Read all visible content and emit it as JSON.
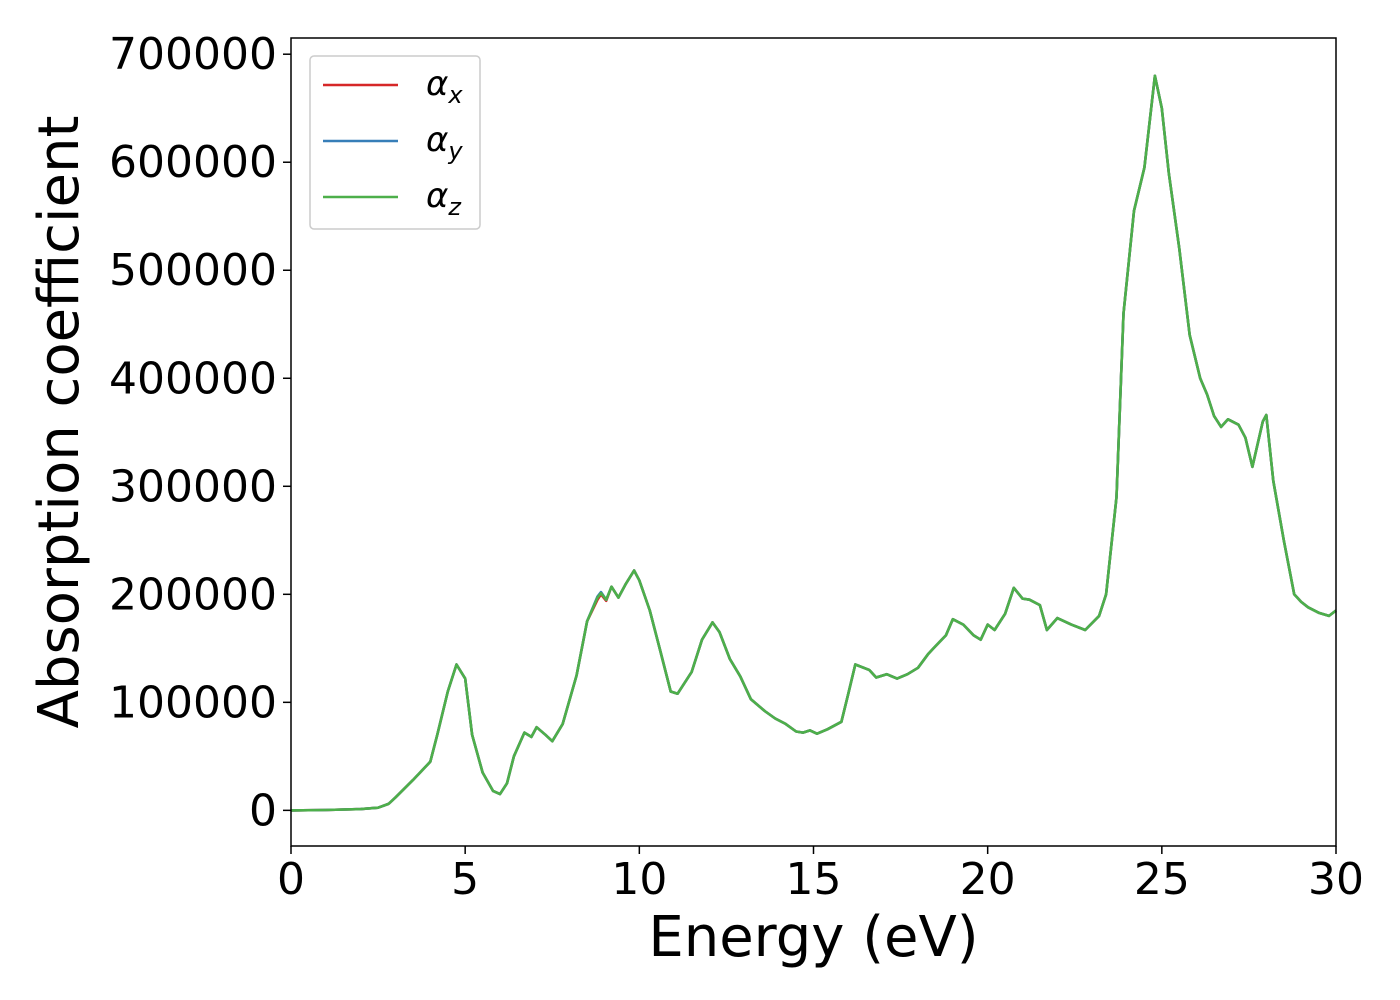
{
  "chart_data": {
    "type": "line",
    "xlabel": "Energy (eV)",
    "ylabel": "Absorption coefficient",
    "xlim": [
      0,
      30
    ],
    "ylim": [
      -33000,
      715000
    ],
    "xticks": [
      "0",
      "5",
      "10",
      "15",
      "20",
      "25",
      "30"
    ],
    "yticks": [
      "0",
      "100000",
      "200000",
      "300000",
      "400000",
      "500000",
      "600000",
      "700000"
    ],
    "grid": false,
    "legend_placement": "upper-left",
    "series": [
      {
        "name": "α",
        "sub": "x",
        "color": "#d62728",
        "x": [
          0,
          1,
          2,
          2.5,
          2.8,
          3.0,
          3.5,
          4.0,
          4.2,
          4.5,
          4.75,
          5.0,
          5.2,
          5.5,
          5.8,
          6.0,
          6.2,
          6.4,
          6.7,
          6.9,
          7.05,
          7.3,
          7.5,
          7.8,
          8.2,
          8.5,
          8.8,
          8.9,
          9.05,
          9.2,
          9.4,
          9.6,
          9.85,
          10.0,
          10.3,
          10.6,
          10.9,
          11.1,
          11.5,
          11.8,
          12.1,
          12.3,
          12.6,
          12.9,
          13.2,
          13.6,
          13.9,
          14.2,
          14.5,
          14.7,
          14.9,
          15.1,
          15.4,
          15.8,
          16.0,
          16.2,
          16.6,
          16.8,
          17.1,
          17.4,
          17.7,
          18.0,
          18.3,
          18.5,
          18.8,
          19.0,
          19.3,
          19.6,
          19.8,
          20.0,
          20.2,
          20.5,
          20.75,
          21.0,
          21.2,
          21.5,
          21.7,
          22.0,
          22.4,
          22.8,
          23.2,
          23.4,
          23.7,
          23.9,
          24.2,
          24.5,
          24.8,
          25.0,
          25.2,
          25.5,
          25.8,
          26.1,
          26.3,
          26.5,
          26.7,
          26.9,
          27.2,
          27.4,
          27.6,
          27.9,
          28.0,
          28.2,
          28.5,
          28.8,
          29.0,
          29.2,
          29.5,
          29.8,
          30.0
        ],
        "y": [
          0,
          300,
          1200,
          2500,
          6000,
          12000,
          28000,
          45000,
          70000,
          110000,
          135000,
          122000,
          70000,
          35000,
          18000,
          15000,
          25000,
          50000,
          72000,
          68000,
          77000,
          70000,
          64000,
          80000,
          125000,
          175000,
          195000,
          200000,
          194000,
          207000,
          197000,
          209000,
          222000,
          213000,
          185000,
          148000,
          110000,
          108000,
          128000,
          158000,
          174000,
          165000,
          140000,
          124000,
          103000,
          92000,
          85000,
          80000,
          73000,
          72000,
          74000,
          71000,
          75000,
          82000,
          108000,
          135000,
          130000,
          123000,
          126000,
          122000,
          126000,
          132000,
          145000,
          152000,
          162000,
          177000,
          172000,
          162000,
          158000,
          172000,
          167000,
          182000,
          206000,
          196000,
          195000,
          190000,
          167000,
          178000,
          172000,
          167000,
          180000,
          200000,
          290000,
          460000,
          555000,
          595000,
          680000,
          650000,
          590000,
          520000,
          440000,
          400000,
          385000,
          365000,
          355000,
          362000,
          357000,
          345000,
          318000,
          360000,
          366000,
          305000,
          250000,
          200000,
          193000,
          188000,
          183000,
          180000,
          185000
        ]
      },
      {
        "name": "α",
        "sub": "y",
        "color": "#377eb8",
        "x": [
          0,
          1,
          2,
          2.5,
          2.8,
          3.0,
          3.5,
          4.0,
          4.2,
          4.5,
          4.75,
          5.0,
          5.2,
          5.5,
          5.8,
          6.0,
          6.2,
          6.4,
          6.7,
          6.9,
          7.05,
          7.3,
          7.5,
          7.8,
          8.2,
          8.5,
          8.8,
          8.9,
          9.05,
          9.2,
          9.4,
          9.6,
          9.85,
          10.0,
          10.3,
          10.6,
          10.9,
          11.1,
          11.5,
          11.8,
          12.1,
          12.3,
          12.6,
          12.9,
          13.2,
          13.6,
          13.9,
          14.2,
          14.5,
          14.7,
          14.9,
          15.1,
          15.4,
          15.8,
          16.0,
          16.2,
          16.6,
          16.8,
          17.1,
          17.4,
          17.7,
          18.0,
          18.3,
          18.5,
          18.8,
          19.0,
          19.3,
          19.6,
          19.8,
          20.0,
          20.2,
          20.5,
          20.75,
          21.0,
          21.2,
          21.5,
          21.7,
          22.0,
          22.4,
          22.8,
          23.2,
          23.4,
          23.7,
          23.9,
          24.2,
          24.5,
          24.8,
          25.0,
          25.2,
          25.5,
          25.8,
          26.1,
          26.3,
          26.5,
          26.7,
          26.9,
          27.2,
          27.4,
          27.6,
          27.9,
          28.0,
          28.2,
          28.5,
          28.8,
          29.0,
          29.2,
          29.5,
          29.8,
          30.0
        ],
        "y": [
          0,
          300,
          1200,
          2500,
          6000,
          12000,
          28000,
          45000,
          70000,
          110000,
          135000,
          122000,
          70000,
          35000,
          18000,
          15000,
          25000,
          50000,
          72000,
          68000,
          77000,
          70000,
          64000,
          80000,
          125000,
          175000,
          198000,
          202000,
          195000,
          207000,
          197000,
          209000,
          222000,
          213000,
          185000,
          148000,
          110000,
          108000,
          128000,
          158000,
          174000,
          165000,
          140000,
          124000,
          103000,
          92000,
          85000,
          80000,
          73000,
          72000,
          74000,
          71000,
          75000,
          82000,
          108000,
          135000,
          130000,
          123000,
          126000,
          122000,
          126000,
          132000,
          145000,
          152000,
          162000,
          177000,
          172000,
          162000,
          158000,
          172000,
          167000,
          182000,
          206000,
          196000,
          195000,
          190000,
          167000,
          178000,
          172000,
          167000,
          180000,
          200000,
          290000,
          460000,
          555000,
          595000,
          680000,
          650000,
          590000,
          520000,
          440000,
          400000,
          385000,
          365000,
          355000,
          362000,
          357000,
          345000,
          318000,
          360000,
          366000,
          305000,
          250000,
          200000,
          193000,
          188000,
          183000,
          180000,
          185000
        ]
      },
      {
        "name": "α",
        "sub": "z",
        "color": "#4daf4a",
        "x": [
          0,
          1,
          2,
          2.5,
          2.8,
          3.0,
          3.5,
          4.0,
          4.2,
          4.5,
          4.75,
          5.0,
          5.2,
          5.5,
          5.8,
          6.0,
          6.2,
          6.4,
          6.7,
          6.9,
          7.05,
          7.3,
          7.5,
          7.8,
          8.2,
          8.5,
          8.8,
          8.9,
          9.05,
          9.2,
          9.4,
          9.6,
          9.85,
          10.0,
          10.3,
          10.6,
          10.9,
          11.1,
          11.5,
          11.8,
          12.1,
          12.3,
          12.6,
          12.9,
          13.2,
          13.6,
          13.9,
          14.2,
          14.5,
          14.7,
          14.9,
          15.1,
          15.4,
          15.8,
          16.0,
          16.2,
          16.6,
          16.8,
          17.1,
          17.4,
          17.7,
          18.0,
          18.3,
          18.5,
          18.8,
          19.0,
          19.3,
          19.6,
          19.8,
          20.0,
          20.2,
          20.5,
          20.75,
          21.0,
          21.2,
          21.5,
          21.7,
          22.0,
          22.4,
          22.8,
          23.2,
          23.4,
          23.7,
          23.9,
          24.2,
          24.5,
          24.8,
          25.0,
          25.2,
          25.5,
          25.8,
          26.1,
          26.3,
          26.5,
          26.7,
          26.9,
          27.2,
          27.4,
          27.6,
          27.9,
          28.0,
          28.2,
          28.5,
          28.8,
          29.0,
          29.2,
          29.5,
          29.8,
          30.0
        ],
        "y": [
          0,
          300,
          1200,
          2500,
          6000,
          12000,
          28000,
          45000,
          70000,
          110000,
          135000,
          122000,
          70000,
          35000,
          18000,
          15000,
          25000,
          50000,
          72000,
          68000,
          77000,
          70000,
          64000,
          80000,
          125000,
          175000,
          197000,
          201000,
          195000,
          207000,
          197000,
          209000,
          222000,
          213000,
          185000,
          148000,
          110000,
          108000,
          128000,
          158000,
          174000,
          165000,
          140000,
          124000,
          103000,
          92000,
          85000,
          80000,
          73000,
          72000,
          74000,
          71000,
          75000,
          82000,
          108000,
          135000,
          130000,
          123000,
          126000,
          122000,
          126000,
          132000,
          145000,
          152000,
          162000,
          177000,
          172000,
          162000,
          158000,
          172000,
          167000,
          182000,
          206000,
          196000,
          195000,
          190000,
          167000,
          178000,
          172000,
          167000,
          180000,
          200000,
          290000,
          460000,
          555000,
          595000,
          680000,
          650000,
          590000,
          520000,
          440000,
          400000,
          385000,
          365000,
          355000,
          362000,
          357000,
          345000,
          318000,
          360000,
          366000,
          305000,
          250000,
          200000,
          193000,
          188000,
          183000,
          180000,
          185000
        ]
      }
    ]
  }
}
